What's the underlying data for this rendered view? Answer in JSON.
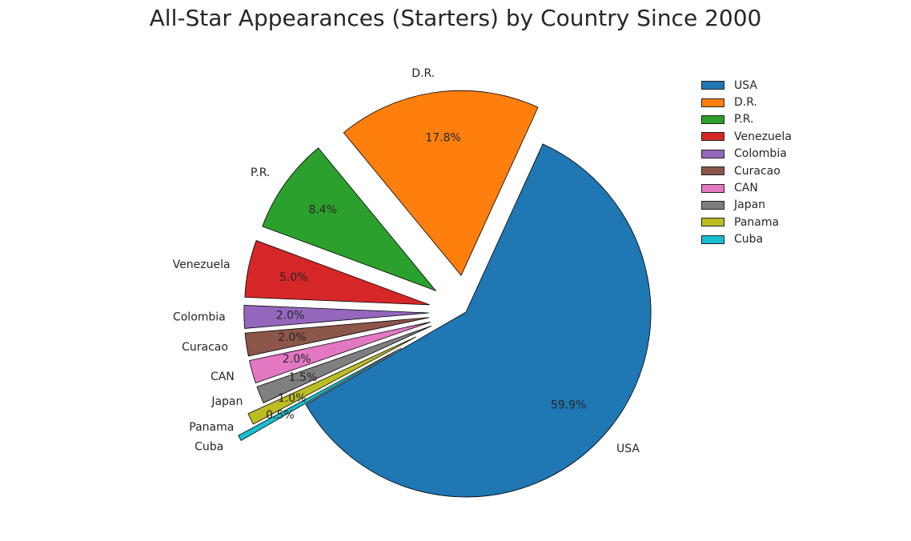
{
  "chart_data": {
    "type": "pie",
    "title": "All-Star Appearances (Starters) by Country Since 2000",
    "categories": [
      "USA",
      "D.R.",
      "P.R.",
      "Venezuela",
      "Colombia",
      "Curacao",
      "CAN",
      "Japan",
      "Panama",
      "Cuba"
    ],
    "values": [
      59.9,
      17.8,
      8.4,
      5.0,
      2.0,
      2.0,
      2.0,
      1.5,
      1.0,
      0.5
    ],
    "pct_labels": [
      "59.9%",
      "17.8%",
      "8.4%",
      "5.0%",
      "2.0%",
      "2.0%",
      "2.0%",
      "1.5%",
      "1.0%",
      "0.5%"
    ],
    "colors": [
      "#1f77b4",
      "#ff7f0e",
      "#2ca02c",
      "#d62728",
      "#9467bd",
      "#8c564b",
      "#e377c2",
      "#7f7f7f",
      "#bcbd22",
      "#17becf"
    ],
    "legend_position": "top-right",
    "exploded": true
  }
}
